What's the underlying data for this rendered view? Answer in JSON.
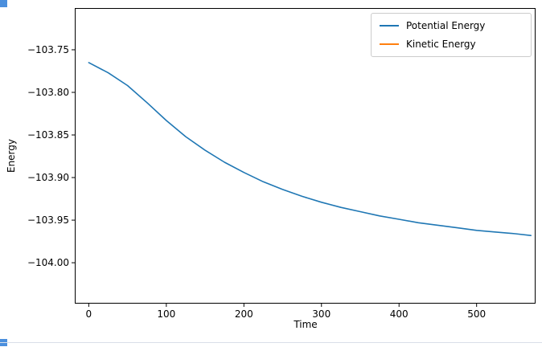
{
  "figure": {
    "background_color": "#ffffff",
    "axes_color": "#000000"
  },
  "chart_data": {
    "type": "line",
    "title": "",
    "xlabel": "Time",
    "ylabel": "Energy",
    "xlim": [
      -18,
      576
    ],
    "ylim": [
      -104.048,
      -103.701
    ],
    "x_ticks": [
      0,
      100,
      200,
      300,
      400,
      500
    ],
    "x_tick_labels": [
      "0",
      "100",
      "200",
      "300",
      "400",
      "500"
    ],
    "y_ticks": [
      -103.75,
      -103.8,
      -103.85,
      -103.9,
      -103.95,
      -104.0
    ],
    "y_tick_labels": [
      "−103.75",
      "−103.80",
      "−103.85",
      "−103.90",
      "−103.95",
      "−104.00"
    ],
    "grid": false,
    "legend": {
      "position": "upper right",
      "entries": [
        "Potential Energy",
        "Kinetic Energy"
      ]
    },
    "series": [
      {
        "name": "Potential Energy",
        "color": "#1f77b4",
        "visible_in_plot": true,
        "x": [
          0,
          25,
          50,
          75,
          100,
          125,
          150,
          175,
          200,
          225,
          250,
          275,
          300,
          325,
          350,
          375,
          400,
          425,
          450,
          475,
          500,
          525,
          550,
          570
        ],
        "y": [
          -103.765,
          -103.777,
          -103.792,
          -103.812,
          -103.833,
          -103.852,
          -103.868,
          -103.882,
          -103.894,
          -103.905,
          -103.914,
          -103.922,
          -103.929,
          -103.935,
          -103.94,
          -103.945,
          -103.949,
          -103.953,
          -103.956,
          -103.959,
          -103.962,
          -103.964,
          -103.966,
          -103.968
        ],
        "y_start": -103.765,
        "y_end": -103.968
      },
      {
        "name": "Kinetic Energy",
        "color": "#ff7f0e",
        "visible_in_plot": false,
        "x": [],
        "y": []
      }
    ]
  },
  "artifacts": {
    "handle_color": "#4b8fdd",
    "line_color": "#d9dfe9"
  }
}
